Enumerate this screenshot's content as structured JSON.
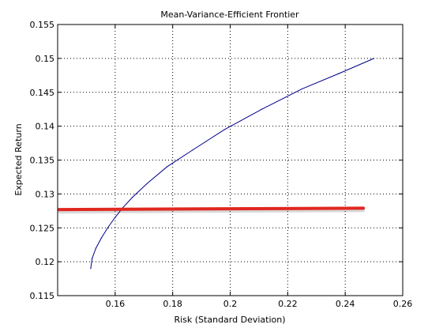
{
  "chart_data": {
    "type": "line",
    "title": "Mean-Variance-Efficient Frontier",
    "xlabel": "Risk (Standard Deviation)",
    "ylabel": "Expected Return",
    "xlim": [
      0.14,
      0.26
    ],
    "ylim": [
      0.115,
      0.155
    ],
    "x_ticks": [
      0.16,
      0.18,
      0.2,
      0.22,
      0.24,
      0.26
    ],
    "x_tick_labels": [
      "0.16",
      "0.18",
      "0.2",
      "0.22",
      "0.24",
      "0.26"
    ],
    "y_ticks": [
      0.115,
      0.12,
      0.125,
      0.13,
      0.135,
      0.14,
      0.145,
      0.15,
      0.155
    ],
    "y_tick_labels": [
      "0.115",
      "0.12",
      "0.125",
      "0.13",
      "0.135",
      "0.14",
      "0.145",
      "0.15",
      "0.155"
    ],
    "grid": true,
    "series": [
      {
        "color": "#00008b",
        "x": [
          0.1515,
          0.152,
          0.1533,
          0.1552,
          0.1574,
          0.1599,
          0.1627,
          0.166,
          0.171,
          0.178,
          0.187,
          0.198,
          0.211,
          0.225,
          0.238,
          0.25
        ],
        "y": [
          0.119,
          0.1205,
          0.122,
          0.1235,
          0.125,
          0.1265,
          0.128,
          0.1295,
          0.1315,
          0.134,
          0.1365,
          0.1395,
          0.1425,
          0.1455,
          0.1478,
          0.15
        ]
      }
    ],
    "annotations": [
      {
        "type": "horizontal-line",
        "color": "#e02820",
        "x": [
          0.1405,
          0.2463
        ],
        "y": [
          0.1277,
          0.1279
        ]
      }
    ]
  }
}
